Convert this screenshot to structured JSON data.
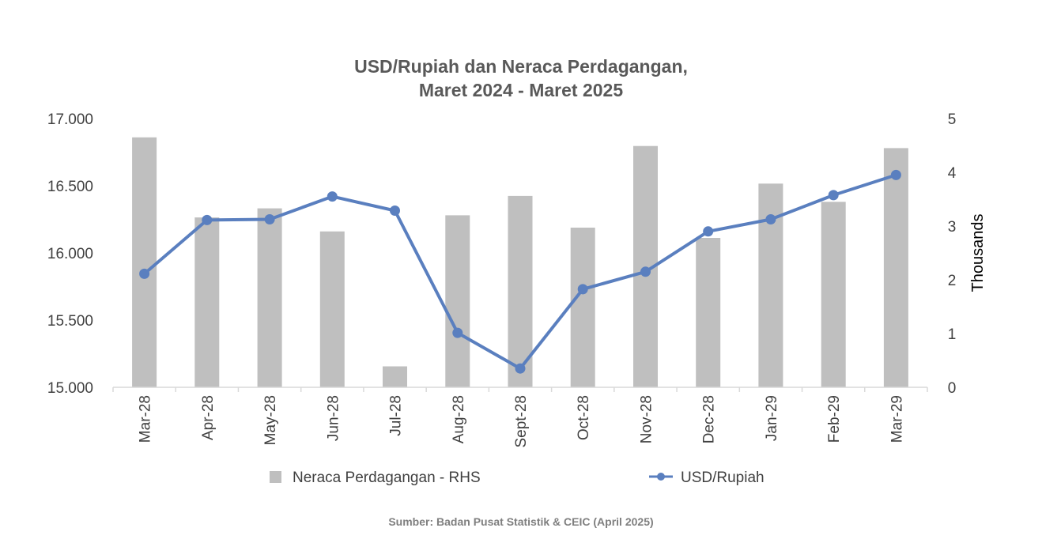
{
  "chart_data": {
    "type": "bar",
    "title_lines": [
      "USD/Rupiah dan Neraca Perdagangan,",
      "Maret 2024 - Maret 2025"
    ],
    "categories": [
      "Mar-28",
      "Apr-28",
      "May-28",
      "Jun-28",
      "Jul-28",
      "Aug-28",
      "Sept-28",
      "Oct-28",
      "Nov-28",
      "Dec-28",
      "Jan-29",
      "Feb-29",
      "Mar-29"
    ],
    "series": [
      {
        "name": "Neraca Perdagangan - RHS",
        "type": "bar",
        "axis": "right",
        "color": "#bfbfbf",
        "values": [
          4.65,
          3.16,
          3.33,
          2.9,
          0.39,
          3.2,
          3.56,
          2.97,
          4.49,
          2.78,
          3.79,
          3.45,
          4.45
        ]
      },
      {
        "name": "USD/Rupiah",
        "type": "line",
        "axis": "left",
        "color": "#5a7fbf",
        "values": [
          15845,
          16245,
          16250,
          16420,
          16315,
          15405,
          15140,
          15730,
          15860,
          16160,
          16250,
          16430,
          16580
        ]
      }
    ],
    "y_left": {
      "min": 15000,
      "max": 17000,
      "ticks": [
        "15.000",
        "15.500",
        "16.000",
        "16.500",
        "17.000"
      ],
      "tick_values": [
        15000,
        15500,
        16000,
        16500,
        17000
      ]
    },
    "y_right": {
      "min": 0,
      "max": 5,
      "ticks": [
        "0",
        "1",
        "2",
        "3",
        "4",
        "5"
      ],
      "tick_values": [
        0,
        1,
        2,
        3,
        4,
        5
      ],
      "label": "Thousands"
    },
    "xlabel": "",
    "grid": false,
    "legend_position": "bottom"
  },
  "source_note": "Sumber: Badan Pusat Statistik & CEIC (April 2025)"
}
